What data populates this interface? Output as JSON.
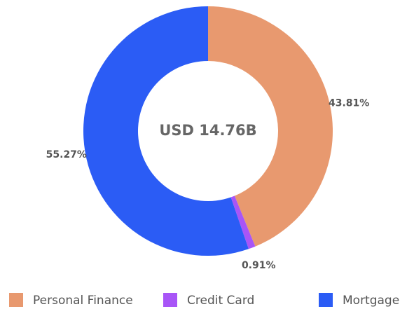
{
  "chart_data": {
    "type": "donut",
    "center_label": "USD 14.76B",
    "categories": [
      "Personal Finance",
      "Credit Card",
      "Mortgage"
    ],
    "values": [
      43.81,
      0.91,
      55.27
    ],
    "value_labels": [
      "43.81%",
      "0.91%",
      "55.27%"
    ],
    "colors": [
      "#e8996f",
      "#a855f7",
      "#2b5cf5"
    ],
    "legend": "bottom"
  }
}
